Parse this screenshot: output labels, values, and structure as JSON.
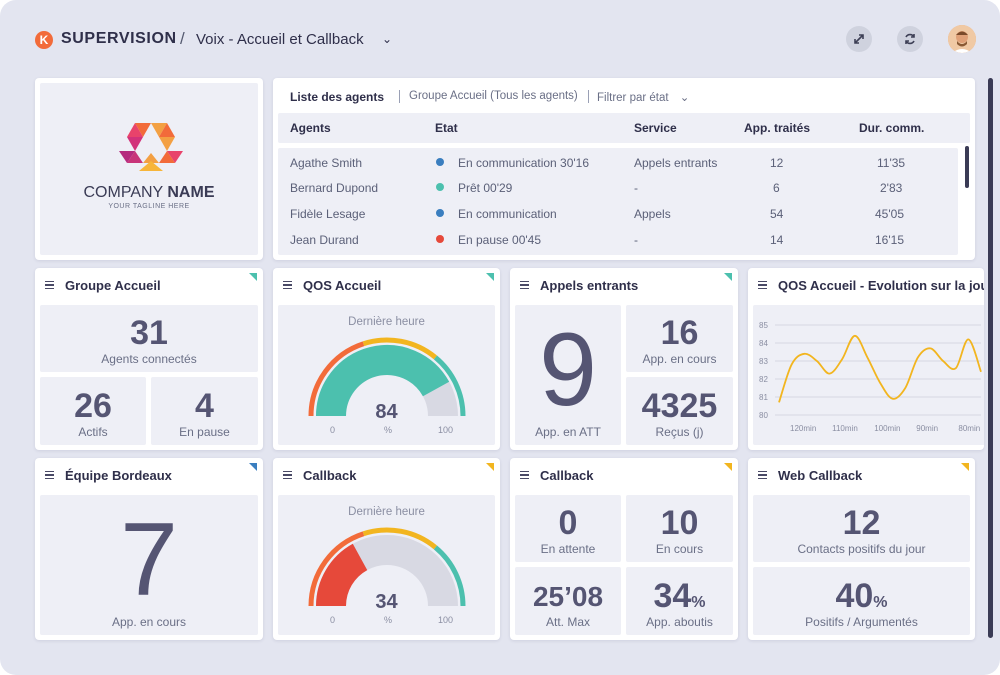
{
  "header": {
    "brand": "SUPERVISION",
    "separator": "/",
    "breadcrumb": "Voix - Accueil et Callback",
    "logo_letter": "K"
  },
  "company": {
    "name_light": "COMPANY",
    "name_bold": "NAME",
    "tagline": "YOUR TAGLINE HERE"
  },
  "agents": {
    "title": "Liste des agents",
    "group_filter": "Groupe Accueil (Tous les agents)",
    "state_filter": "Filtrer par état",
    "columns": [
      "Agents",
      "Etat",
      "Service",
      "App. traités",
      "Dur. comm."
    ],
    "rows": [
      {
        "name": "Agathe Smith",
        "state": "En communication 30'16",
        "state_color": "#3a7ebf",
        "service": "Appels entrants",
        "handled": "12",
        "duration": "11'35"
      },
      {
        "name": "Bernard Dupond",
        "state": "Prêt 00'29",
        "state_color": "#4cc0ae",
        "service": "-",
        "handled": "6",
        "duration": "2'83"
      },
      {
        "name": "Fidèle Lesage",
        "state": "En communication",
        "state_color": "#3a7ebf",
        "service": "Appels",
        "handled": "54",
        "duration": "45'05"
      },
      {
        "name": "Jean Durand",
        "state": "En pause 00'45",
        "state_color": "#e6493a",
        "service": "-",
        "handled": "14",
        "duration": "16'15"
      }
    ]
  },
  "groupe_accueil": {
    "title": "Groupe Accueil",
    "flag_color": "#4cc0ae",
    "connected_value": "31",
    "connected_label": "Agents connectés",
    "active_value": "26",
    "active_label": "Actifs",
    "pause_value": "4",
    "pause_label": "En pause"
  },
  "qos_accueil": {
    "title": "QOS Accueil",
    "flag_color": "#4cc0ae",
    "caption": "Dernière heure",
    "value": "84",
    "unit": "%",
    "min_label": "0",
    "max_label": "100",
    "level": 0.84
  },
  "appels_entrants": {
    "title": "Appels entrants",
    "flag_color": "#4cc0ae",
    "att_value": "9",
    "att_label": "App. en ATT",
    "current_value": "16",
    "current_label": "App. en cours",
    "received_value": "4325",
    "received_label": "Reçus (j)"
  },
  "qos_evolution": {
    "title": "QOS Accueil - Evolution sur la journée"
  },
  "equipe_bordeaux": {
    "title": "Équipe Bordeaux",
    "flag_color": "#3a7ebf",
    "value": "7",
    "label": "App. en cours"
  },
  "callback_gauge": {
    "title": "Callback",
    "flag_color": "#f2b51f",
    "caption": "Dernière heure",
    "value": "34",
    "unit": "%",
    "min_label": "0",
    "max_label": "100",
    "level": 0.34
  },
  "callback_stats": {
    "title": "Callback",
    "flag_color": "#f2b51f",
    "waiting_value": "0",
    "waiting_label": "En attente",
    "current_value": "10",
    "current_label": "En cours",
    "max_value": "25’08",
    "max_label": "Att. Max",
    "success_value": "34",
    "success_unit": "%",
    "success_label": "App. aboutis"
  },
  "web_callback": {
    "title": "Web Callback",
    "flag_color": "#f2b51f",
    "positive_value": "12",
    "positive_label": "Contacts positifs du jour",
    "rate_value": "40",
    "rate_unit": "%",
    "rate_label": "Positifs / Argumentés"
  },
  "chart_data": {
    "type": "line",
    "yticks": [
      "85",
      "84",
      "83",
      "82",
      "81",
      "80"
    ],
    "ylim": [
      80,
      85
    ],
    "xticks": [
      "120min",
      "110min",
      "100min",
      "90min",
      "80min"
    ],
    "x": [
      125,
      122,
      119,
      116,
      113,
      110,
      107,
      104,
      101,
      98,
      95,
      92,
      89,
      86,
      83,
      80,
      77
    ],
    "series": [
      {
        "values": [
          80.7,
          82.8,
          83.4,
          83.0,
          82.3,
          83.1,
          84.4,
          83.2,
          81.8,
          80.9,
          81.5,
          83.2,
          83.7,
          83.0,
          82.6,
          84.2,
          82.4
        ]
      }
    ],
    "line_color": "#f2b51f",
    "grid": true
  }
}
